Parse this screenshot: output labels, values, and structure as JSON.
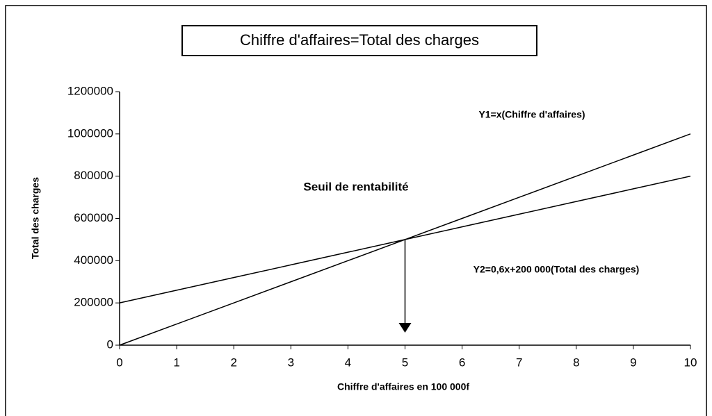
{
  "chart_data": {
    "type": "line",
    "title": "Chiffre d'affaires=Total des charges",
    "x_label": "Chiffre d'affaires en 100 000f",
    "y_label": "Total des charges",
    "x": [
      0,
      1,
      2,
      3,
      4,
      5,
      6,
      7,
      8,
      9,
      10
    ],
    "series": [
      {
        "name": "Y1=x(Chiffre d'affaires)",
        "color": "#000000",
        "values": [
          0,
          100000,
          200000,
          300000,
          400000,
          500000,
          600000,
          700000,
          800000,
          900000,
          1000000
        ]
      },
      {
        "name": "Y2=0,6x+200 000(Total des charges)",
        "color": "#000000",
        "values": [
          200000,
          260000,
          320000,
          380000,
          440000,
          500000,
          560000,
          620000,
          680000,
          740000,
          800000
        ]
      }
    ],
    "annotations": [
      "Seuil de rentabilité"
    ],
    "xlim": [
      0,
      10
    ],
    "xticks": [
      0,
      1,
      2,
      3,
      4,
      5,
      6,
      7,
      8,
      9,
      10
    ],
    "ylim": [
      0,
      1200000
    ],
    "yticks": [
      0,
      200000,
      400000,
      600000,
      800000,
      1000000,
      1200000
    ],
    "grid": false
  }
}
